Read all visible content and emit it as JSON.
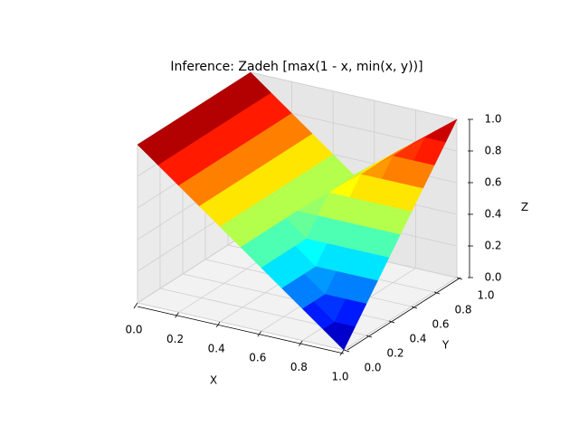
{
  "chart_data": {
    "type": "surface",
    "title": "Inference: Zadeh [max(1 - x, min(x, y))]",
    "xlabel": "X",
    "ylabel": "Y",
    "zlabel": "Z",
    "colormap": "jet",
    "grid": true,
    "x": [
      0,
      0.1,
      0.2,
      0.3,
      0.4,
      0.5,
      0.6,
      0.7,
      0.8,
      0.9,
      1
    ],
    "y": [
      0,
      0.1,
      0.2,
      0.3,
      0.4,
      0.5,
      0.6,
      0.7,
      0.8,
      0.9,
      1
    ],
    "z": [
      [
        1,
        0.9,
        0.8,
        0.7,
        0.6,
        0.5,
        0.4,
        0.3,
        0.2,
        0.1,
        0
      ],
      [
        1,
        0.9,
        0.8,
        0.7,
        0.6,
        0.5,
        0.4,
        0.3,
        0.2,
        0.1,
        0.1
      ],
      [
        1,
        0.9,
        0.8,
        0.7,
        0.6,
        0.5,
        0.4,
        0.3,
        0.2,
        0.2,
        0.2
      ],
      [
        1,
        0.9,
        0.8,
        0.7,
        0.6,
        0.5,
        0.4,
        0.3,
        0.3,
        0.3,
        0.3
      ],
      [
        1,
        0.9,
        0.8,
        0.7,
        0.6,
        0.5,
        0.4,
        0.4,
        0.4,
        0.4,
        0.4
      ],
      [
        1,
        0.9,
        0.8,
        0.7,
        0.6,
        0.5,
        0.5,
        0.5,
        0.5,
        0.5,
        0.5
      ],
      [
        1,
        0.9,
        0.8,
        0.7,
        0.6,
        0.5,
        0.6,
        0.6,
        0.6,
        0.6,
        0.6
      ],
      [
        1,
        0.9,
        0.8,
        0.7,
        0.6,
        0.5,
        0.6,
        0.7,
        0.7,
        0.7,
        0.7
      ],
      [
        1,
        0.9,
        0.8,
        0.7,
        0.6,
        0.5,
        0.6,
        0.7,
        0.8,
        0.8,
        0.8
      ],
      [
        1,
        0.9,
        0.8,
        0.7,
        0.6,
        0.5,
        0.6,
        0.7,
        0.8,
        0.9,
        0.9
      ],
      [
        1,
        0.9,
        0.8,
        0.7,
        0.6,
        0.5,
        0.6,
        0.7,
        0.8,
        0.9,
        1
      ]
    ],
    "xlim": [
      0,
      1
    ],
    "ylim": [
      0,
      1
    ],
    "zlim": [
      0,
      1
    ],
    "xticks": [
      {
        "value": 0,
        "label": "0.0"
      },
      {
        "value": 0.2,
        "label": "0.2"
      },
      {
        "value": 0.4,
        "label": "0.4"
      },
      {
        "value": 0.6,
        "label": "0.6"
      },
      {
        "value": 0.8,
        "label": "0.8"
      },
      {
        "value": 1,
        "label": "1.0"
      }
    ],
    "yticks": [
      {
        "value": 0,
        "label": "0.0"
      },
      {
        "value": 0.2,
        "label": "0.2"
      },
      {
        "value": 0.4,
        "label": "0.4"
      },
      {
        "value": 0.6,
        "label": "0.6"
      },
      {
        "value": 0.8,
        "label": "0.8"
      },
      {
        "value": 1,
        "label": "1.0"
      }
    ],
    "zticks": [
      {
        "value": 0,
        "label": "0.0"
      },
      {
        "value": 0.2,
        "label": "0.2"
      },
      {
        "value": 0.4,
        "label": "0.4"
      },
      {
        "value": 0.6,
        "label": "0.6"
      },
      {
        "value": 0.8,
        "label": "0.8"
      },
      {
        "value": 1,
        "label": "1.0"
      }
    ]
  }
}
